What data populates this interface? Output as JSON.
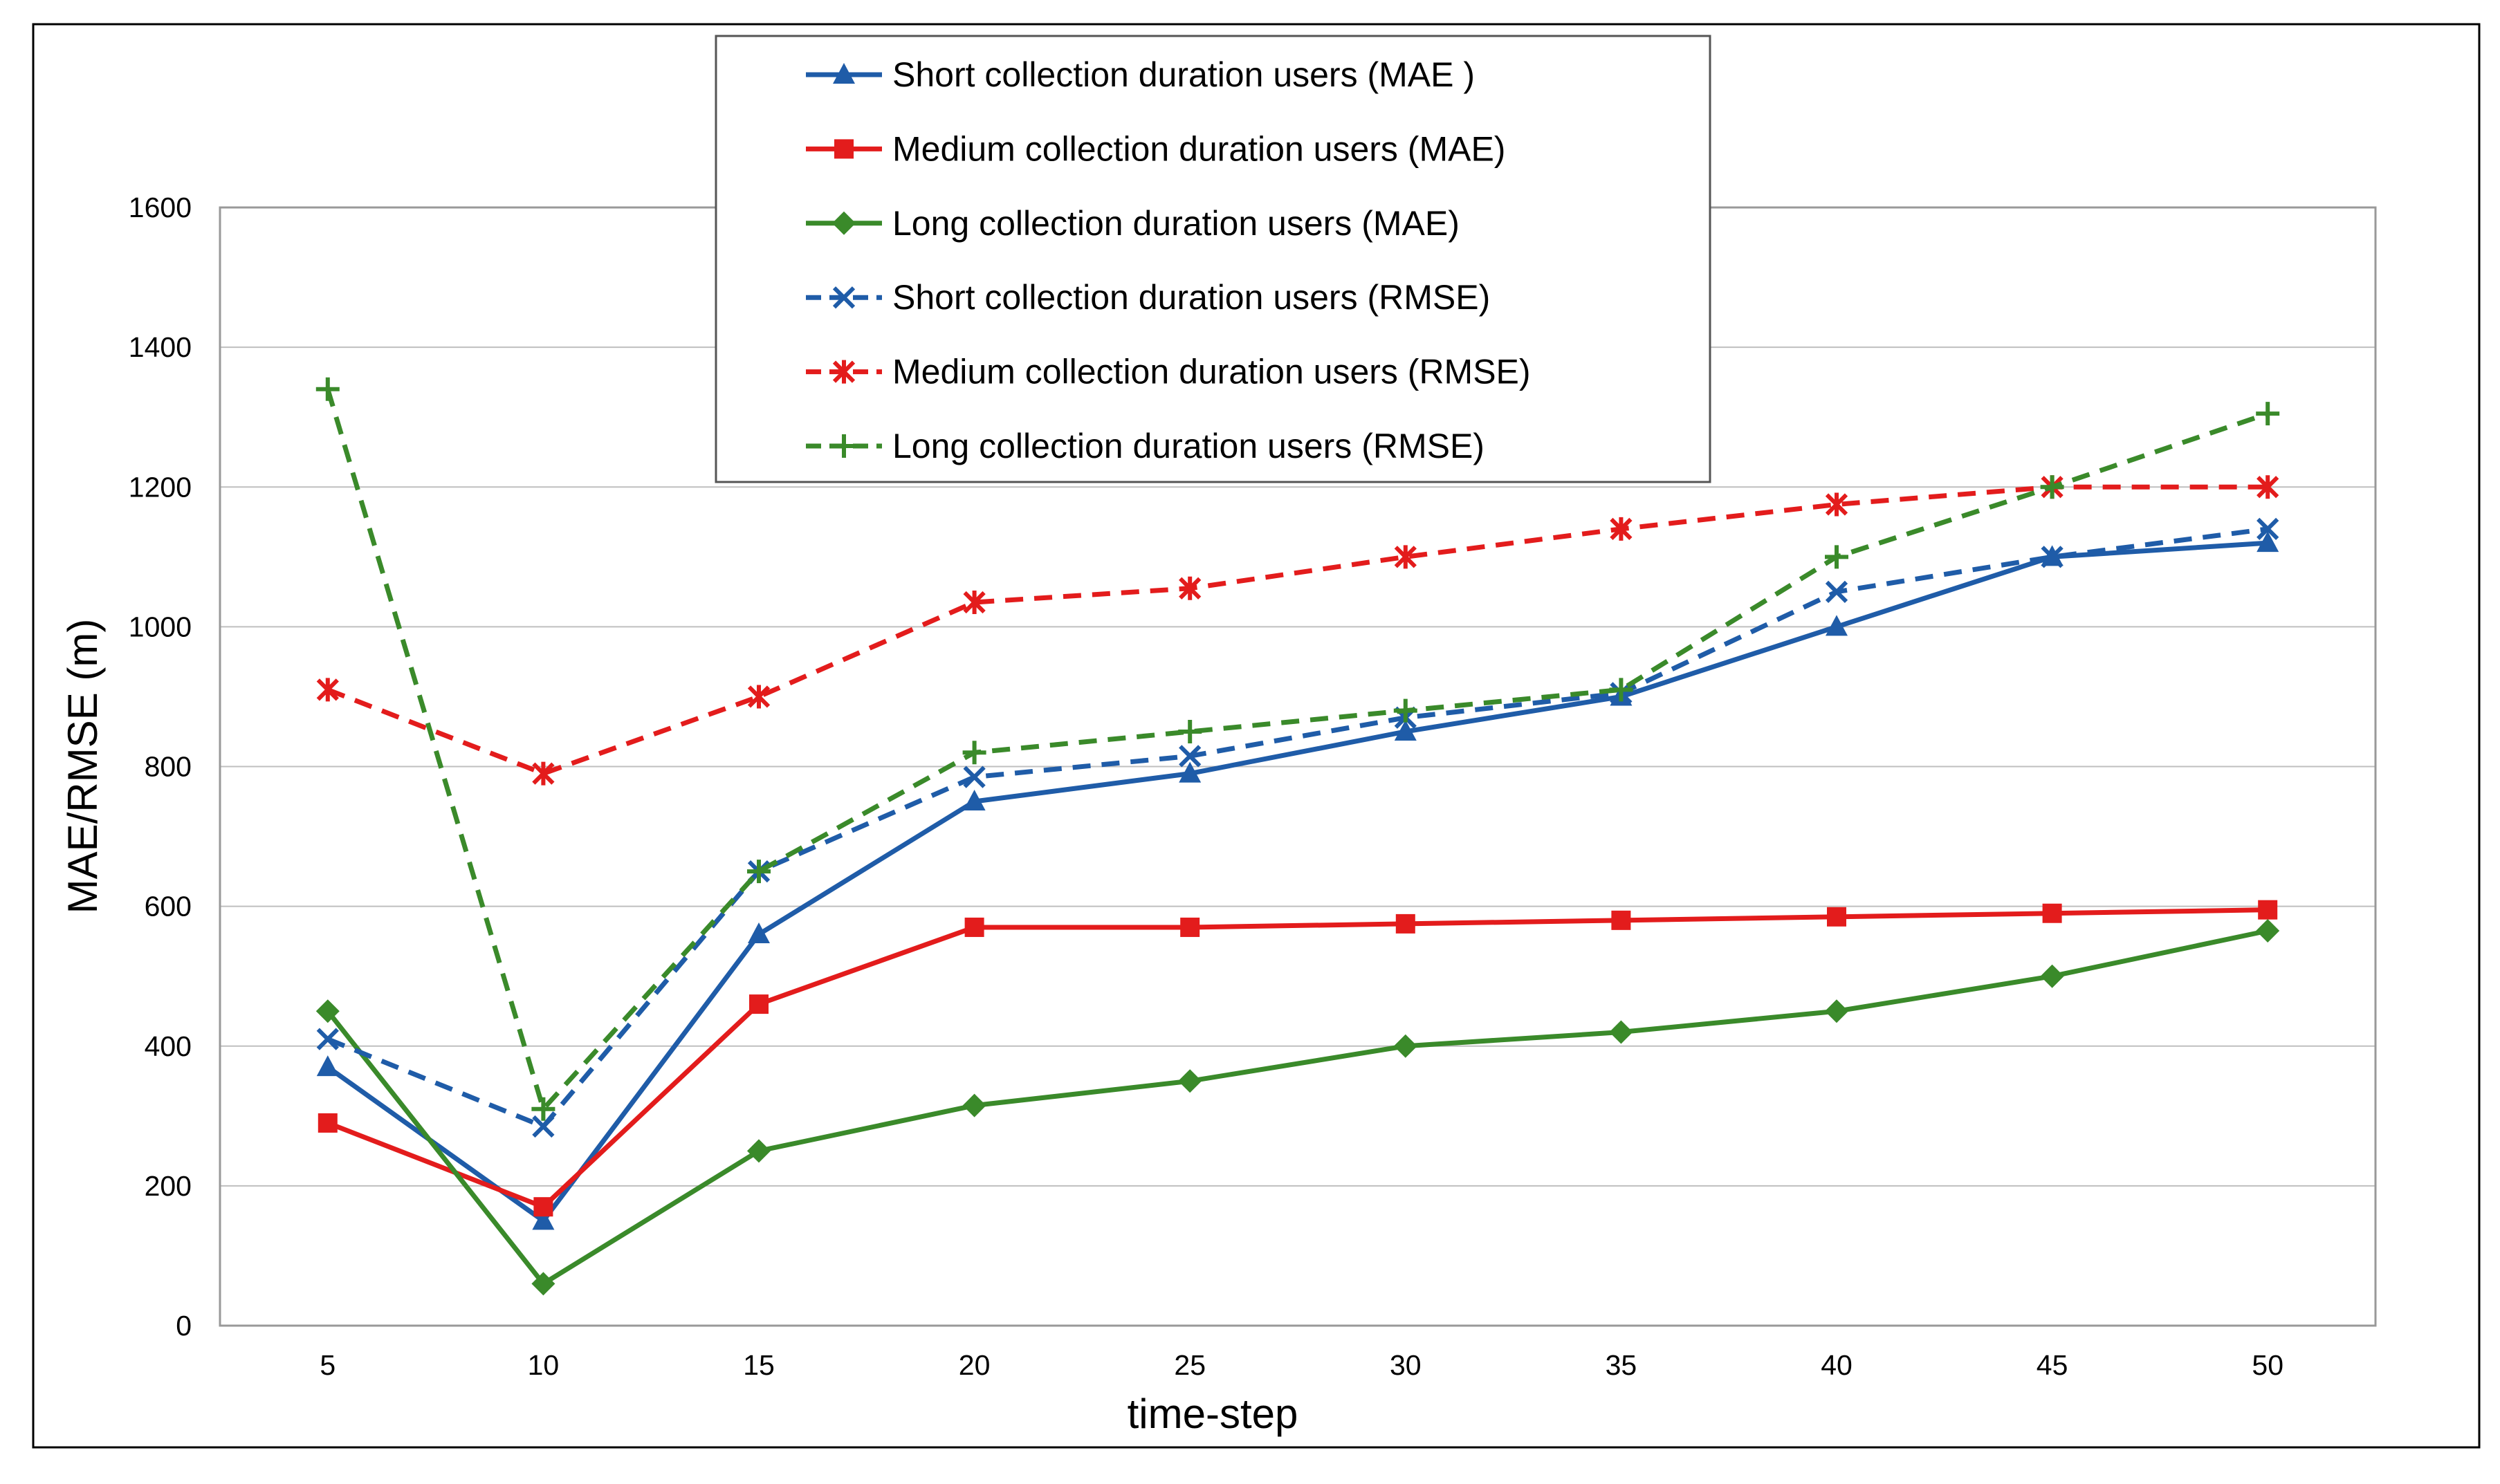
{
  "chart_data": {
    "type": "line",
    "title": "",
    "xlabel": "time-step",
    "ylabel": "MAE/RMSE (m)",
    "x": [
      5,
      10,
      15,
      20,
      25,
      30,
      35,
      40,
      45,
      50
    ],
    "ylim": [
      0,
      1600
    ],
    "yticks": [
      0,
      200,
      400,
      600,
      800,
      1000,
      1200,
      1400,
      1600
    ],
    "grid": "horizontal",
    "legend_position": "top-center",
    "series": [
      {
        "name": "Short collection duration users (MAE )",
        "color": "#1f5ca8",
        "dash": "solid",
        "marker": "triangle",
        "values": [
          370,
          150,
          560,
          750,
          790,
          850,
          900,
          1000,
          1100,
          1120
        ]
      },
      {
        "name": "Medium collection duration users (MAE)",
        "color": "#e31c1c",
        "dash": "solid",
        "marker": "square",
        "values": [
          290,
          170,
          460,
          570,
          570,
          575,
          580,
          585,
          590,
          595
        ]
      },
      {
        "name": "Long collection duration users (MAE)",
        "color": "#3a8a2a",
        "dash": "solid",
        "marker": "diamond",
        "values": [
          450,
          60,
          250,
          315,
          350,
          400,
          420,
          450,
          500,
          565
        ]
      },
      {
        "name": "Short collection duration users (RMSE)",
        "color": "#1f5ca8",
        "dash": "dashed",
        "marker": "x",
        "values": [
          410,
          285,
          650,
          785,
          815,
          870,
          905,
          1050,
          1100,
          1140
        ]
      },
      {
        "name": "Medium collection duration users (RMSE)",
        "color": "#e31c1c",
        "dash": "dashed",
        "marker": "star",
        "values": [
          910,
          790,
          900,
          1035,
          1055,
          1100,
          1140,
          1175,
          1200,
          1200
        ]
      },
      {
        "name": "Long collection duration users (RMSE)",
        "color": "#3a8a2a",
        "dash": "dashed",
        "marker": "plus",
        "values": [
          1340,
          310,
          650,
          820,
          850,
          880,
          910,
          1100,
          1200,
          1305
        ]
      }
    ]
  }
}
